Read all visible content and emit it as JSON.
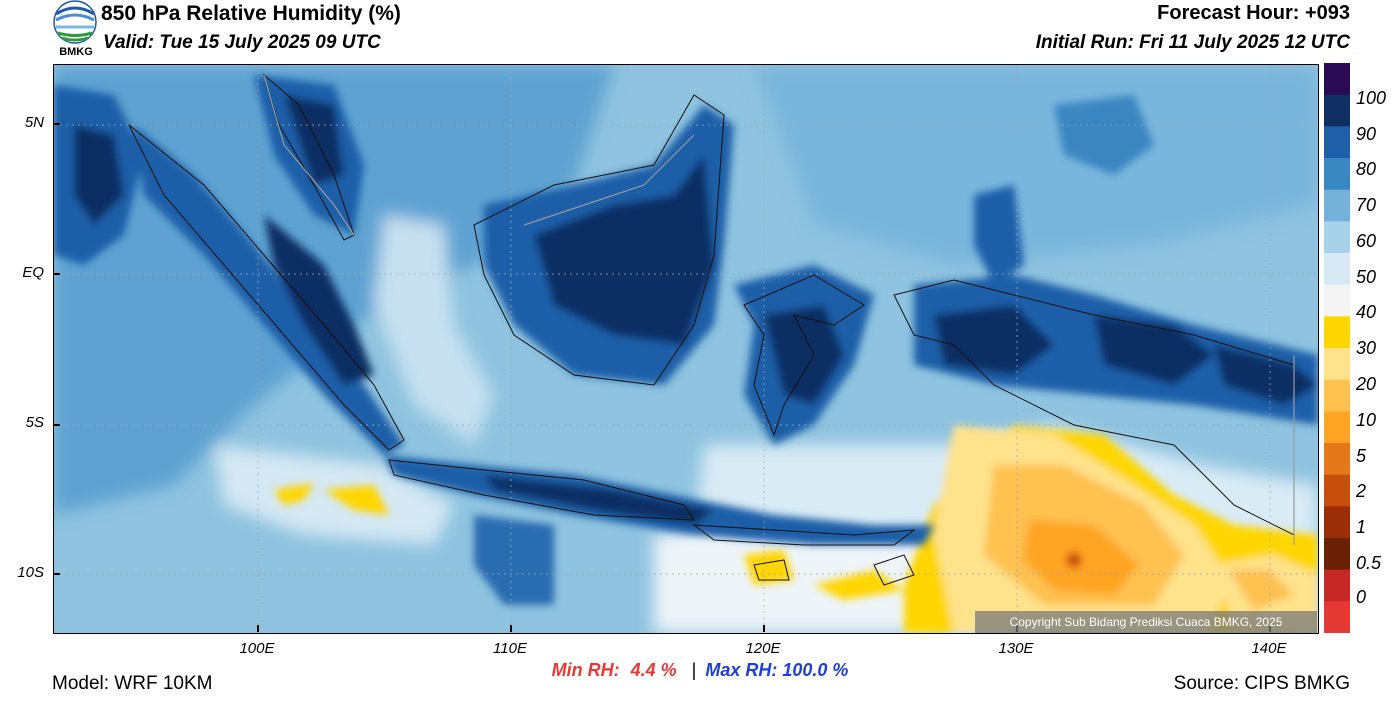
{
  "header": {
    "title": "850 hPa Relative Humidity (%)",
    "valid": "Valid: Tue 15 July 2025 09 UTC",
    "forecast_hour": "Forecast Hour: +093",
    "initial_run": "Initial Run: Fri 11 July 2025 12 UTC"
  },
  "logo": {
    "text": "BMKG",
    "icon": "bmkg-logo-icon"
  },
  "axes": {
    "lat_ticks": [
      "5N",
      "EQ",
      "5S",
      "10S"
    ],
    "lon_ticks": [
      "100E",
      "110E",
      "120E",
      "130E",
      "140E"
    ]
  },
  "colorbar": {
    "labels": [
      "100",
      "90",
      "80",
      "70",
      "60",
      "50",
      "40",
      "30",
      "20",
      "10",
      "5",
      "2",
      "1",
      "0.5",
      "0"
    ],
    "colors": [
      "#2b0a55",
      "#0f2f63",
      "#1f5ea8",
      "#3a86c1",
      "#74b2da",
      "#a8d1ea",
      "#d7e9f4",
      "#f4f4f4",
      "#ffd600",
      "#ffe28c",
      "#ffc150",
      "#ffa424",
      "#e5781a",
      "#c84e0d",
      "#9b2d07",
      "#6a2005",
      "#c62828",
      "#e53935"
    ]
  },
  "stats": {
    "min_label": "Min RH:",
    "min_value": "4.4 %",
    "separator": "|",
    "max_label": "Max RH: 100.0 %"
  },
  "footer": {
    "model": "Model: WRF 10KM",
    "source": "Source: CIPS BMKG",
    "copyright": "Copyright Sub Bidang Prediksi Cuaca BMKG, 2025"
  }
}
